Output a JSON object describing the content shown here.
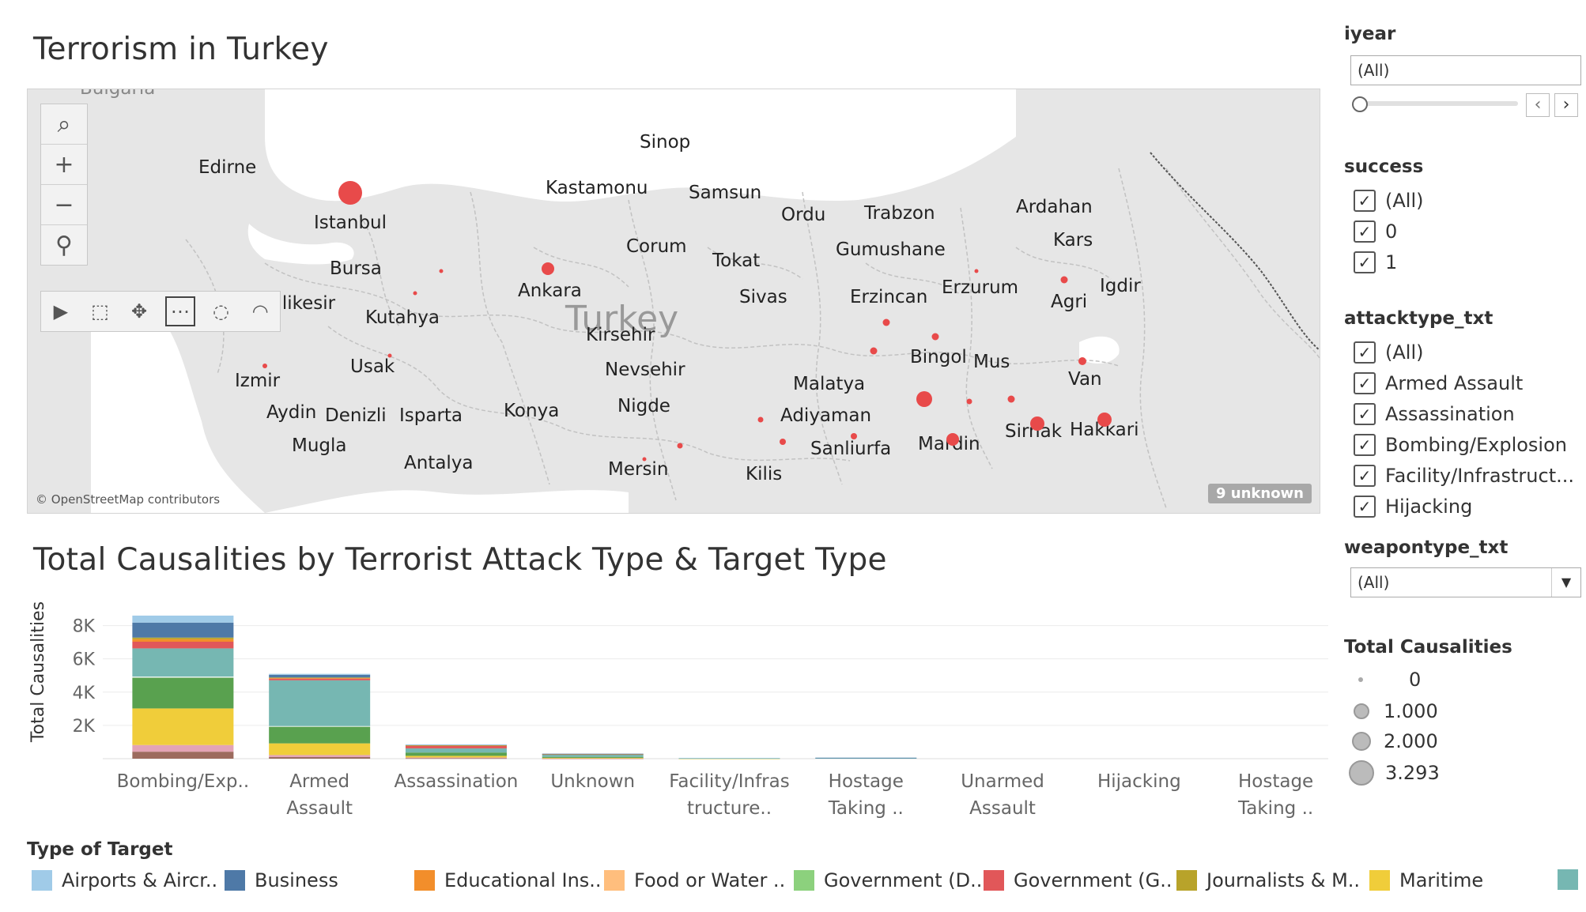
{
  "dashboard": {
    "map_title": "Terrorism in Turkey",
    "chart_title": "Total Causalities by Terrorist Attack Type & Target Type"
  },
  "map": {
    "country_label": "Turkey",
    "top_partial_label": "Bulgaria",
    "attribution": "© OpenStreetMap contributors",
    "unknown_badge": "9 unknown",
    "cities": [
      "Sinop",
      "Edirne",
      "Kastamonu",
      "Samsun",
      "Istanbul",
      "Ordu",
      "Trabzon",
      "Ardahan",
      "Corum",
      "Gumushane",
      "Kars",
      "Bursa",
      "Tokat",
      "Ankara",
      "Sivas",
      "Erzincan",
      "Erzurum",
      "Agri",
      "Igdir",
      "Balikesir",
      "Kutahya",
      "Kirsehir",
      "Bingol",
      "Mus",
      "Usak",
      "Nevsehir",
      "Izmir",
      "Malatya",
      "Van",
      "Konya",
      "Nigde",
      "Aydin",
      "Denizli",
      "Isparta",
      "Adiyaman",
      "Sirnak",
      "Hakkari",
      "Mardin",
      "Mugla",
      "Sanliurfa",
      "Antalya",
      "Mersin",
      "Kilis"
    ],
    "tools": {
      "search_icon": "search-icon",
      "zoom_in_icon": "zoom-in-icon",
      "zoom_out_icon": "zoom-out-icon",
      "pin_icon": "pin-icon",
      "play_icon": "play-icon",
      "zoom_area_icon": "zoom-area-icon",
      "pan_icon": "pan-icon",
      "rect_select_icon": "rectangle-select-icon",
      "radial_select_icon": "radial-select-icon",
      "lasso_select_icon": "lasso-select-icon"
    },
    "marker_color": "#e84a4a"
  },
  "filters": {
    "iyear": {
      "title": "iyear",
      "value": "(All)"
    },
    "success": {
      "title": "success",
      "options": [
        "(All)",
        "0",
        "1"
      ]
    },
    "attacktype": {
      "title": "attacktype_txt",
      "options": [
        "(All)",
        "Armed Assault",
        "Assassination",
        "Bombing/Explosion",
        "Facility/Infrastruct...",
        "Hijacking"
      ]
    },
    "weapontype": {
      "title": "weapontype_txt",
      "value": "(All)"
    }
  },
  "size_legend": {
    "title": "Total Causalities",
    "values": [
      "0",
      "1.000",
      "2.000",
      "3.293"
    ]
  },
  "chart_data": {
    "type": "bar",
    "stacked": true,
    "ylabel": "Total Causalities",
    "ylim": [
      0,
      9500
    ],
    "yticks": [
      2000,
      4000,
      6000,
      8000
    ],
    "ytick_labels": [
      "2K",
      "4K",
      "6K",
      "8K"
    ],
    "grid": true,
    "categories": [
      [
        "Bombing/Exp.."
      ],
      [
        "Armed",
        "Assault"
      ],
      [
        "Assassination"
      ],
      [
        "Unknown"
      ],
      [
        "Facility/Infras",
        "tructure.."
      ],
      [
        "Hostage",
        "Taking .."
      ],
      [
        "Unarmed",
        "Assault"
      ],
      [
        "Hijacking"
      ],
      [
        "Hostage",
        "Taking .."
      ]
    ],
    "series": [
      {
        "color": "#9c6b5e",
        "values": [
          420,
          100,
          30,
          10,
          0,
          0,
          0,
          0,
          0
        ]
      },
      {
        "color": "#e3a3b5",
        "values": [
          400,
          120,
          40,
          10,
          0,
          0,
          0,
          0,
          0
        ]
      },
      {
        "color": "#f0cd3a",
        "values": [
          2200,
          700,
          100,
          30,
          10,
          0,
          0,
          0,
          0
        ]
      },
      {
        "color": "#59a14f",
        "values": [
          1850,
          1000,
          200,
          60,
          0,
          0,
          0,
          0,
          0
        ]
      },
      {
        "color": "#ffffff",
        "values": [
          60,
          40,
          0,
          0,
          0,
          0,
          0,
          0,
          0
        ]
      },
      {
        "color": "#76b7b2",
        "values": [
          1700,
          2750,
          250,
          150,
          20,
          40,
          0,
          0,
          0
        ]
      },
      {
        "color": "#e15759",
        "values": [
          400,
          100,
          150,
          0,
          0,
          0,
          0,
          0,
          0
        ]
      },
      {
        "color": "#f28e2b",
        "values": [
          150,
          40,
          30,
          10,
          0,
          0,
          0,
          0,
          0
        ]
      },
      {
        "color": "#b8a32a",
        "values": [
          100,
          30,
          20,
          0,
          0,
          0,
          0,
          0,
          0
        ]
      },
      {
        "color": "#4e79a7",
        "values": [
          900,
          160,
          20,
          30,
          0,
          20,
          0,
          0,
          0
        ]
      },
      {
        "color": "#a0cbe8",
        "values": [
          420,
          60,
          10,
          0,
          20,
          0,
          0,
          0,
          0
        ]
      }
    ]
  },
  "target_legend": {
    "title": "Type of Target",
    "items": [
      {
        "label": "Airports & Aircr..",
        "color": "#a0cbe8"
      },
      {
        "label": "Business",
        "color": "#4e79a7"
      },
      {
        "label": "Educational Ins..",
        "color": "#f28e2b"
      },
      {
        "label": "Food or Water ..",
        "color": "#ffbe7d"
      },
      {
        "label": "Government (D..",
        "color": "#8cd17d"
      },
      {
        "label": "Government (G..",
        "color": "#e15759"
      },
      {
        "label": "Journalists & M..",
        "color": "#b8a32a"
      },
      {
        "label": "Maritime",
        "color": "#f0cd3a"
      },
      {
        "label": "",
        "color": "#76b7b2"
      }
    ]
  }
}
